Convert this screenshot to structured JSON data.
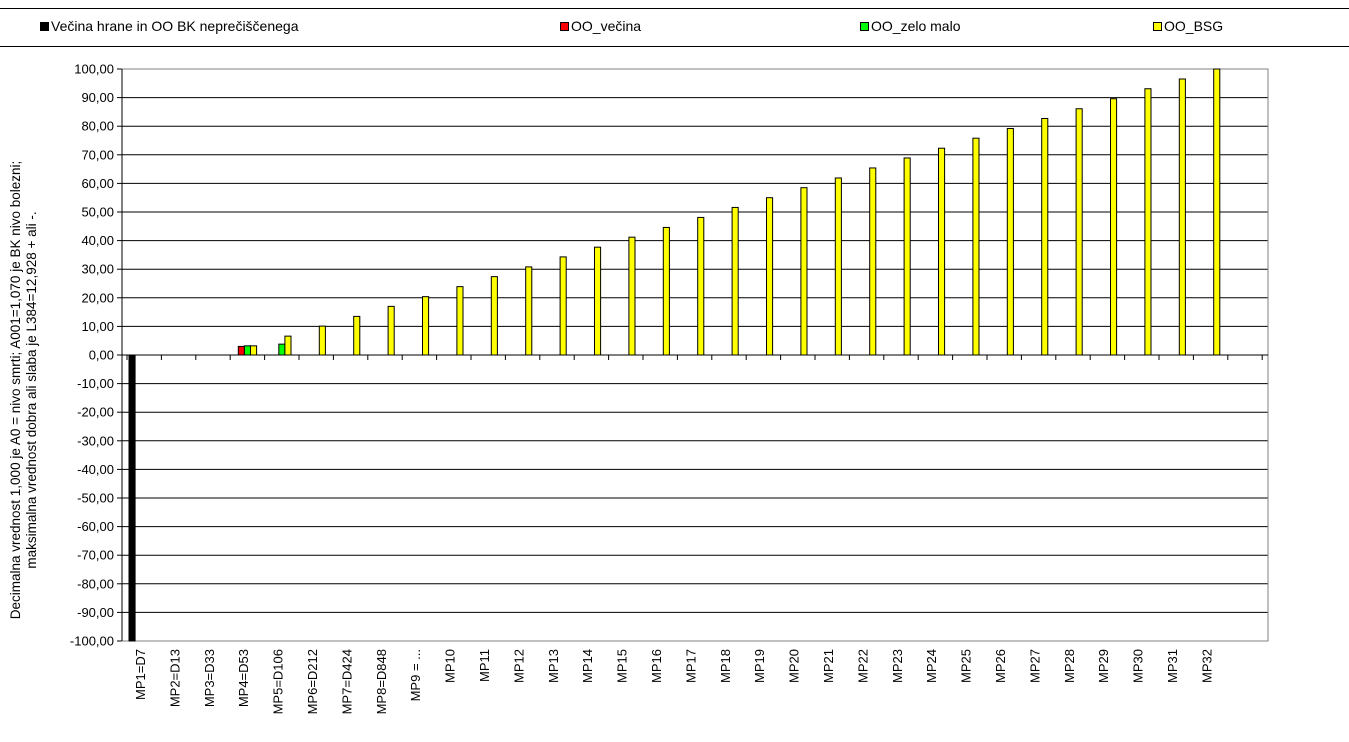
{
  "chart_data": {
    "type": "bar",
    "title": "",
    "xlabel": "",
    "ylabel": "Decimalna vrednost 1,000 je A0 = nivo smrti; A001=1,070 je BK nivo bolezni;\nmaksimalna vrednost dobra ali slaba je L384=12,928 + ali -.",
    "ylim": [
      -100,
      100
    ],
    "ytick_step": 10,
    "ytick_labels": [
      "100,00",
      "90,00",
      "80,00",
      "70,00",
      "60,00",
      "50,00",
      "40,00",
      "30,00",
      "20,00",
      "10,00",
      "0,00",
      "-10,00",
      "-20,00",
      "-30,00",
      "-40,00",
      "-50,00",
      "-60,00",
      "-70,00",
      "-80,00",
      "-90,00",
      "-100,00"
    ],
    "grid": true,
    "legend_position": "top",
    "categories": [
      "MP1=D7",
      "MP2=D13",
      "MP3=D33",
      "MP4=D53",
      "MP5=D106",
      "MP6=D212",
      "MP7=D424",
      "MP8=D848",
      "MP9 = ...",
      "MP10",
      "MP11",
      "MP12",
      "MP13",
      "MP14",
      "MP15",
      "MP16",
      "MP17",
      "MP18",
      "MP19",
      "MP20",
      "MP21",
      "MP22",
      "MP23",
      "MP24",
      "MP25",
      "MP26",
      "MP27",
      "MP28",
      "MP29",
      "MP30",
      "MP31",
      "MP32"
    ],
    "series": [
      {
        "name": "Večina hrane in OO BK neprečiščenega",
        "color": "#000000",
        "values": [
          -100,
          null,
          null,
          null,
          null,
          null,
          null,
          null,
          null,
          null,
          null,
          null,
          null,
          null,
          null,
          null,
          null,
          null,
          null,
          null,
          null,
          null,
          null,
          null,
          null,
          null,
          null,
          null,
          null,
          null,
          null,
          null
        ]
      },
      {
        "name": "OO_večina",
        "color": "#ff0000",
        "values": [
          null,
          null,
          null,
          3.0,
          null,
          null,
          null,
          null,
          null,
          null,
          null,
          null,
          null,
          null,
          null,
          null,
          null,
          null,
          null,
          null,
          null,
          null,
          null,
          null,
          null,
          null,
          null,
          null,
          null,
          null,
          null,
          null
        ]
      },
      {
        "name": "OO_zelo malo",
        "color": "#00ff00",
        "values": [
          null,
          null,
          null,
          3.2,
          3.8,
          null,
          null,
          null,
          null,
          null,
          null,
          null,
          null,
          null,
          null,
          null,
          null,
          null,
          null,
          null,
          null,
          null,
          null,
          null,
          null,
          null,
          null,
          null,
          null,
          null,
          null,
          null
        ]
      },
      {
        "name": "OO_BSG",
        "color": "#ffff00",
        "values": [
          null,
          null,
          null,
          3.2,
          6.6,
          10.1,
          13.5,
          17.0,
          20.4,
          23.9,
          27.4,
          30.8,
          34.3,
          37.7,
          41.2,
          44.6,
          48.1,
          51.6,
          55.0,
          58.5,
          61.9,
          65.4,
          68.9,
          72.3,
          75.8,
          79.2,
          82.7,
          86.1,
          89.6,
          93.1,
          96.5,
          100.0
        ]
      }
    ]
  }
}
